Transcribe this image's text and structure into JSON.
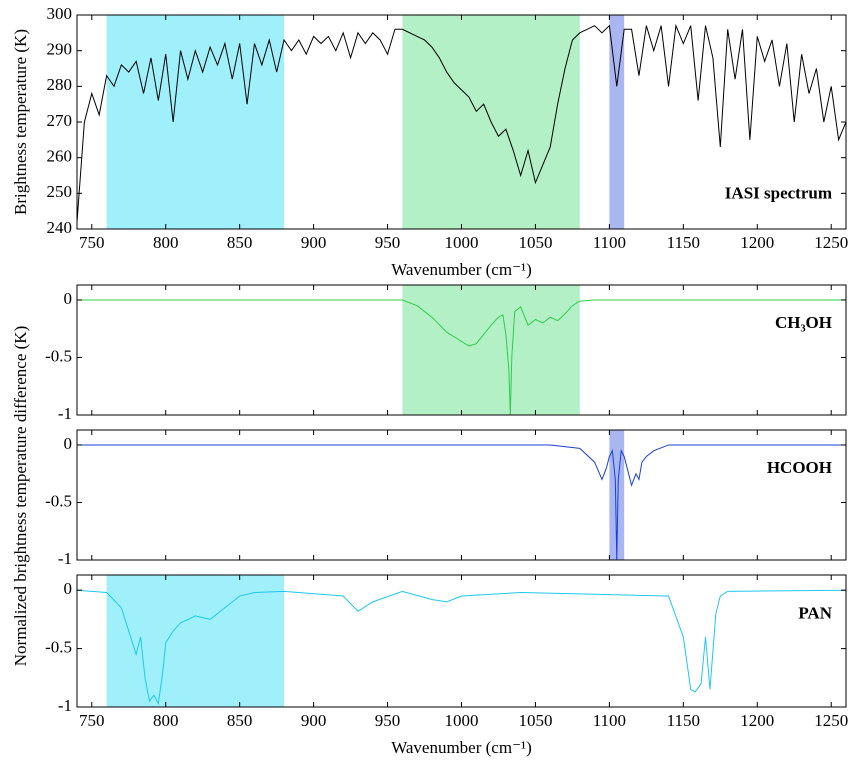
{
  "chart_data": [
    {
      "type": "line",
      "ylabel": "Brightness temperature (K)",
      "xlabel": "Wavenumber (cm⁻¹)",
      "annotation": "IASI spectrum",
      "annotation_color": "#000000",
      "xlim": [
        740,
        1260
      ],
      "ylim": [
        240,
        300
      ],
      "xticks": [
        750,
        800,
        850,
        900,
        950,
        1000,
        1050,
        1100,
        1150,
        1200,
        1250
      ],
      "yticks": [
        240,
        250,
        260,
        270,
        280,
        290,
        300
      ],
      "shaded": [
        {
          "x": [
            760,
            880
          ],
          "color": "#9ff0fb"
        },
        {
          "x": [
            960,
            1080
          ],
          "color": "#b3f0c6"
        },
        {
          "x": [
            1100,
            1110
          ],
          "color": "#aab6f2"
        }
      ],
      "series": [
        {
          "color": "#000000",
          "x": [
            740,
            745,
            750,
            755,
            760,
            765,
            770,
            775,
            780,
            785,
            790,
            795,
            800,
            805,
            810,
            815,
            820,
            825,
            830,
            835,
            840,
            845,
            850,
            855,
            860,
            865,
            870,
            875,
            880,
            885,
            890,
            895,
            900,
            905,
            910,
            915,
            920,
            925,
            930,
            935,
            940,
            945,
            950,
            955,
            960,
            965,
            970,
            975,
            980,
            985,
            990,
            995,
            1000,
            1005,
            1010,
            1015,
            1020,
            1025,
            1030,
            1035,
            1040,
            1045,
            1050,
            1055,
            1060,
            1065,
            1070,
            1075,
            1080,
            1085,
            1090,
            1095,
            1100,
            1105,
            1110,
            1115,
            1120,
            1125,
            1130,
            1135,
            1140,
            1145,
            1150,
            1155,
            1160,
            1165,
            1170,
            1175,
            1180,
            1185,
            1190,
            1195,
            1200,
            1205,
            1210,
            1215,
            1220,
            1225,
            1230,
            1235,
            1240,
            1245,
            1250,
            1255,
            1260
          ],
          "values": [
            242,
            270,
            278,
            272,
            283,
            280,
            286,
            284,
            287,
            278,
            288,
            276,
            289,
            270,
            290,
            282,
            290,
            284,
            291,
            286,
            292,
            282,
            292,
            275,
            292,
            286,
            293,
            284,
            293,
            290,
            293,
            289,
            294,
            292,
            294,
            290,
            295,
            288,
            295,
            292,
            295,
            293,
            289,
            296,
            296,
            295,
            294,
            293,
            291,
            288,
            284,
            281,
            279,
            277,
            273,
            275,
            270,
            266,
            268,
            262,
            255,
            262,
            253,
            258,
            263,
            275,
            285,
            293,
            295,
            296,
            297,
            295,
            297,
            280,
            296,
            296,
            283,
            297,
            290,
            297,
            280,
            297,
            292,
            297,
            276,
            297,
            288,
            263,
            296,
            282,
            296,
            265,
            294,
            287,
            293,
            280,
            292,
            270,
            289,
            278,
            285,
            270,
            280,
            265,
            270
          ]
        }
      ]
    },
    {
      "type": "line",
      "ylabel": "Normalized brightness temperature difference (K)",
      "annotation": "CH₃OH",
      "annotation_color": "#2ecc4a",
      "xlim": [
        740,
        1260
      ],
      "ylim": [
        -1,
        0.13
      ],
      "xticks": [
        750,
        800,
        850,
        900,
        950,
        1000,
        1050,
        1100,
        1150,
        1200,
        1250
      ],
      "yticks": [
        -1,
        -0.5,
        0
      ],
      "shaded": [
        {
          "x": [
            960,
            1080
          ],
          "color": "#b3f0c6"
        }
      ],
      "series": [
        {
          "color": "#2ecc4a",
          "x": [
            740,
            900,
            960,
            970,
            980,
            990,
            1000,
            1005,
            1010,
            1015,
            1020,
            1025,
            1028,
            1030,
            1032,
            1033,
            1034,
            1036,
            1040,
            1045,
            1050,
            1055,
            1060,
            1065,
            1070,
            1075,
            1080,
            1090,
            1260
          ],
          "values": [
            0,
            0,
            0,
            -0.05,
            -0.15,
            -0.28,
            -0.36,
            -0.4,
            -0.38,
            -0.3,
            -0.22,
            -0.15,
            -0.13,
            -0.3,
            -0.6,
            -1,
            -0.5,
            -0.1,
            -0.06,
            -0.22,
            -0.17,
            -0.2,
            -0.15,
            -0.18,
            -0.12,
            -0.05,
            -0.01,
            0,
            0
          ]
        }
      ]
    },
    {
      "type": "line",
      "annotation": "HCOOH",
      "annotation_color": "#1a3fd6",
      "xlim": [
        740,
        1260
      ],
      "ylim": [
        -1,
        0.13
      ],
      "xticks": [
        750,
        800,
        850,
        900,
        950,
        1000,
        1050,
        1100,
        1150,
        1200,
        1250
      ],
      "yticks": [
        -1,
        -0.5,
        0
      ],
      "shaded": [
        {
          "x": [
            1100,
            1110
          ],
          "color": "#aab6f2"
        }
      ],
      "series": [
        {
          "color": "#1a3fd6",
          "x": [
            740,
            1060,
            1080,
            1090,
            1095,
            1098,
            1100,
            1102,
            1104,
            1105,
            1106,
            1108,
            1110,
            1115,
            1118,
            1120,
            1122,
            1125,
            1130,
            1140,
            1260
          ],
          "values": [
            0,
            0,
            -0.03,
            -0.15,
            -0.3,
            -0.2,
            -0.1,
            -0.05,
            -0.3,
            -1,
            -0.3,
            -0.05,
            -0.1,
            -0.35,
            -0.25,
            -0.3,
            -0.15,
            -0.1,
            -0.05,
            0,
            0
          ]
        }
      ]
    },
    {
      "type": "line",
      "xlabel": "Wavenumber (cm⁻¹)",
      "annotation": "PAN",
      "annotation_color": "#1ec8ee",
      "xlim": [
        740,
        1260
      ],
      "ylim": [
        -1,
        0.13
      ],
      "xticks": [
        750,
        800,
        850,
        900,
        950,
        1000,
        1050,
        1100,
        1150,
        1200,
        1250
      ],
      "yticks": [
        -1,
        -0.5,
        0
      ],
      "shaded": [
        {
          "x": [
            760,
            880
          ],
          "color": "#9ff0fb"
        }
      ],
      "series": [
        {
          "color": "#1ec8ee",
          "x": [
            740,
            760,
            770,
            775,
            780,
            783,
            786,
            789,
            792,
            795,
            798,
            800,
            805,
            810,
            815,
            820,
            830,
            840,
            850,
            860,
            880,
            920,
            930,
            940,
            960,
            980,
            990,
            1000,
            1040,
            1140,
            1150,
            1155,
            1158,
            1162,
            1165,
            1168,
            1172,
            1175,
            1180,
            1260
          ],
          "values": [
            0,
            -0.02,
            -0.15,
            -0.35,
            -0.55,
            -0.4,
            -0.75,
            -0.95,
            -0.9,
            -0.97,
            -0.7,
            -0.45,
            -0.35,
            -0.28,
            -0.25,
            -0.22,
            -0.25,
            -0.15,
            -0.05,
            -0.02,
            -0.01,
            -0.05,
            -0.18,
            -0.1,
            -0.01,
            -0.08,
            -0.1,
            -0.05,
            -0.02,
            -0.05,
            -0.4,
            -0.85,
            -0.87,
            -0.8,
            -0.4,
            -0.85,
            -0.2,
            -0.05,
            -0.01,
            0
          ]
        }
      ]
    }
  ]
}
